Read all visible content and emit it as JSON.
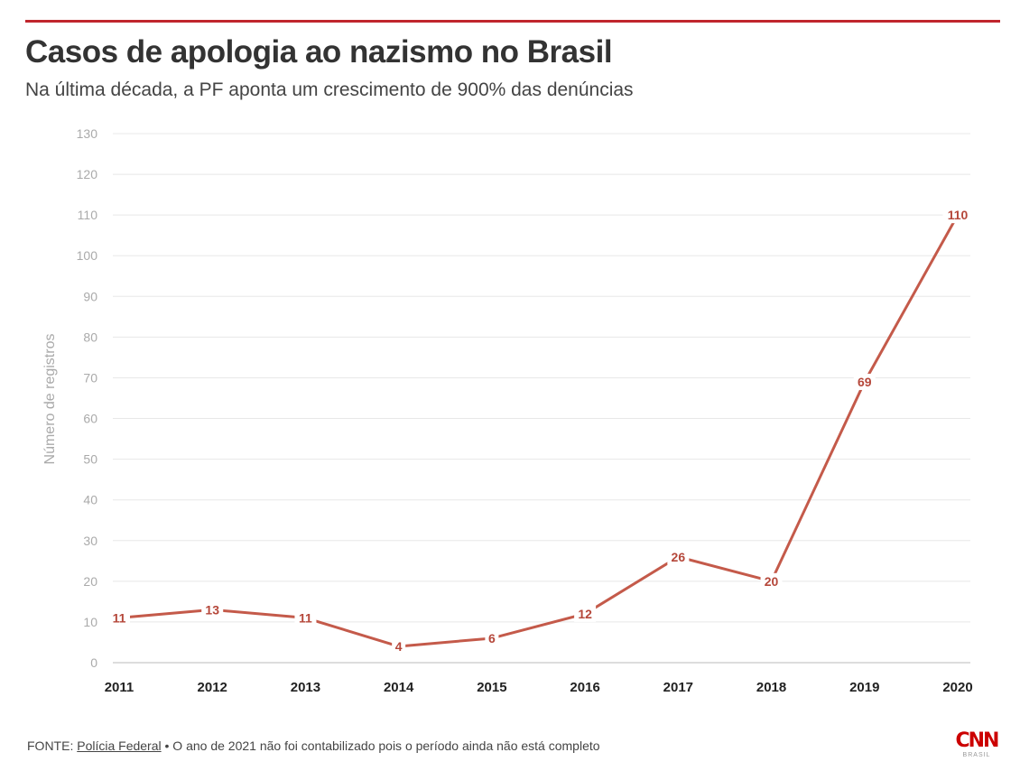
{
  "chart_data": {
    "type": "line",
    "title": "Casos de apologia ao nazismo no Brasil",
    "subtitle": "Na última década, a PF aponta um crescimento de 900% das denúncias",
    "xlabel": "",
    "ylabel": "Número de registros",
    "categories": [
      "2011",
      "2012",
      "2013",
      "2014",
      "2015",
      "2016",
      "2017",
      "2018",
      "2019",
      "2020"
    ],
    "series": [
      {
        "values": [
          11,
          13,
          11,
          4,
          6,
          12,
          26,
          20,
          69,
          110
        ]
      }
    ],
    "data_labels": [
      "11",
      "13",
      "11",
      "4",
      "6",
      "12",
      "26",
      "20",
      "69",
      "110"
    ],
    "ylim": [
      0,
      130
    ],
    "yticks": [
      "0",
      "10",
      "20",
      "30",
      "40",
      "50",
      "60",
      "70",
      "80",
      "90",
      "100",
      "110",
      "120",
      "130"
    ],
    "grid": true,
    "line_color": "#c45a4a",
    "label_color": "#b5473a"
  },
  "footer": {
    "prefix": "FONTE: ",
    "source_link": "Polícia Federal",
    "note": " • O ano de 2021 não foi contabilizado pois o período ainda não está completo"
  },
  "logo": {
    "mark": "CNN",
    "sub": "BRASIL"
  }
}
